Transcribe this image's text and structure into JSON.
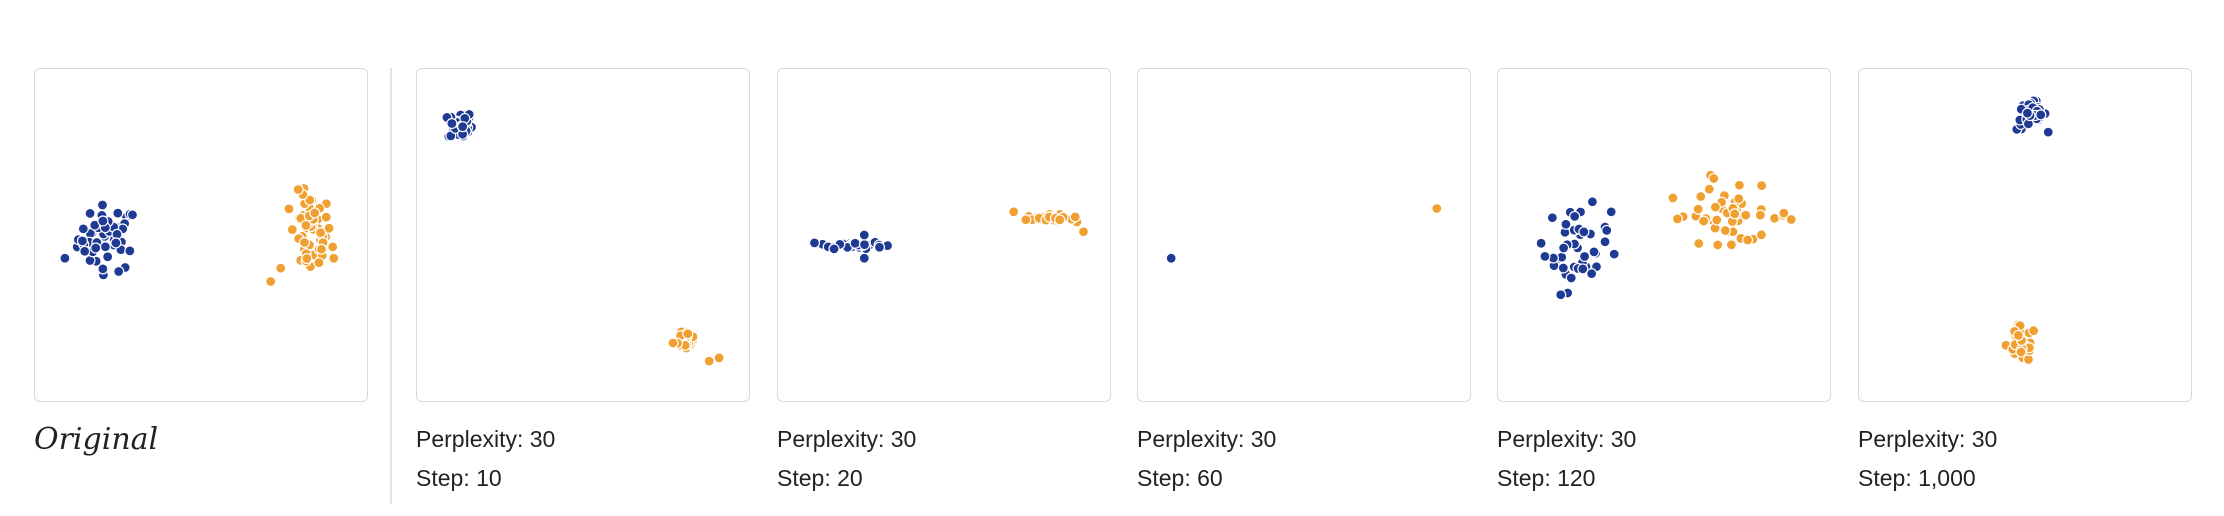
{
  "colors": {
    "blue": "#1f3a93",
    "orange": "#f0a030"
  },
  "original_label": "Original",
  "panels": [
    {
      "id": "original",
      "caption_lines": []
    },
    {
      "id": "step-10",
      "caption_lines": [
        "Perplexity: 30",
        "Step: 10"
      ]
    },
    {
      "id": "step-20",
      "caption_lines": [
        "Perplexity: 30",
        "Step: 20"
      ]
    },
    {
      "id": "step-60",
      "caption_lines": [
        "Perplexity: 30",
        "Step: 60"
      ]
    },
    {
      "id": "step-120",
      "caption_lines": [
        "Perplexity: 30",
        "Step: 120"
      ]
    },
    {
      "id": "step-1000",
      "caption_lines": [
        "Perplexity: 30",
        "Step: 1,000"
      ]
    }
  ],
  "chart_data": [
    {
      "type": "scatter",
      "title": "Original",
      "xlim": [
        0,
        1
      ],
      "ylim": [
        0,
        1
      ],
      "series": [
        {
          "color": "#1f3a93",
          "cluster": {
            "cx": 0.22,
            "cy": 0.49,
            "rx": 0.1,
            "ry": 0.11,
            "n": 50
          },
          "outliers": [
            [
              0.09,
              0.43
            ]
          ]
        },
        {
          "color": "#f0a030",
          "cluster": {
            "cx": 0.83,
            "cy": 0.5,
            "rx": 0.07,
            "ry": 0.14,
            "n": 50
          },
          "outliers": [
            [
              0.71,
              0.36
            ],
            [
              0.74,
              0.4
            ],
            [
              0.9,
              0.43
            ]
          ]
        }
      ]
    },
    {
      "type": "scatter",
      "title": "Perplexity: 30 / Step: 10",
      "xlim": [
        0,
        1
      ],
      "ylim": [
        0,
        1
      ],
      "series": [
        {
          "color": "#1f3a93",
          "cluster": {
            "cx": 0.13,
            "cy": 0.83,
            "rx": 0.04,
            "ry": 0.05,
            "n": 30
          },
          "outliers": []
        },
        {
          "color": "#f0a030",
          "cluster": {
            "cx": 0.81,
            "cy": 0.19,
            "rx": 0.04,
            "ry": 0.04,
            "n": 30
          },
          "outliers": [
            [
              0.88,
              0.12
            ],
            [
              0.91,
              0.13
            ]
          ]
        }
      ]
    },
    {
      "type": "scatter",
      "title": "Perplexity: 30 / Step: 20",
      "xlim": [
        0,
        1
      ],
      "ylim": [
        0,
        1
      ],
      "series": [
        {
          "color": "#1f3a93",
          "cluster": {
            "cx": 0.22,
            "cy": 0.47,
            "rx": 0.11,
            "ry": 0.012,
            "n": 30
          },
          "outliers": [
            [
              0.26,
              0.43
            ],
            [
              0.26,
              0.5
            ]
          ]
        },
        {
          "color": "#f0a030",
          "cluster": {
            "cx": 0.82,
            "cy": 0.55,
            "rx": 0.08,
            "ry": 0.012,
            "n": 30
          },
          "outliers": [
            [
              0.71,
              0.57
            ],
            [
              0.92,
              0.51
            ]
          ]
        }
      ]
    },
    {
      "type": "scatter",
      "title": "Perplexity: 30 / Step: 60",
      "xlim": [
        0,
        1
      ],
      "ylim": [
        0,
        1
      ],
      "series": [
        {
          "color": "#1f3a93",
          "cluster": {
            "cx": 0.1,
            "cy": 0.43,
            "rx": 0.0,
            "ry": 0.0,
            "n": 1
          },
          "outliers": []
        },
        {
          "color": "#f0a030",
          "cluster": {
            "cx": 0.9,
            "cy": 0.58,
            "rx": 0.0,
            "ry": 0.0,
            "n": 1
          },
          "outliers": []
        }
      ]
    },
    {
      "type": "scatter",
      "title": "Perplexity: 30 / Step: 120",
      "xlim": [
        0,
        1
      ],
      "ylim": [
        0,
        1
      ],
      "series": [
        {
          "color": "#1f3a93",
          "cluster": {
            "cx": 0.24,
            "cy": 0.46,
            "rx": 0.11,
            "ry": 0.14,
            "n": 45
          },
          "outliers": []
        },
        {
          "color": "#f0a030",
          "cluster": {
            "cx": 0.7,
            "cy": 0.56,
            "rx": 0.22,
            "ry": 0.09,
            "n": 45
          },
          "outliers": [
            [
              0.64,
              0.68
            ],
            [
              0.65,
              0.67
            ]
          ]
        }
      ]
    },
    {
      "type": "scatter",
      "title": "Perplexity: 30 / Step: 1,000",
      "xlim": [
        0,
        1
      ],
      "ylim": [
        0,
        1
      ],
      "series": [
        {
          "color": "#1f3a93",
          "cluster": {
            "cx": 0.52,
            "cy": 0.86,
            "rx": 0.05,
            "ry": 0.05,
            "n": 40
          },
          "outliers": []
        },
        {
          "color": "#f0a030",
          "cluster": {
            "cx": 0.49,
            "cy": 0.17,
            "rx": 0.05,
            "ry": 0.06,
            "n": 40
          },
          "outliers": []
        }
      ]
    }
  ]
}
